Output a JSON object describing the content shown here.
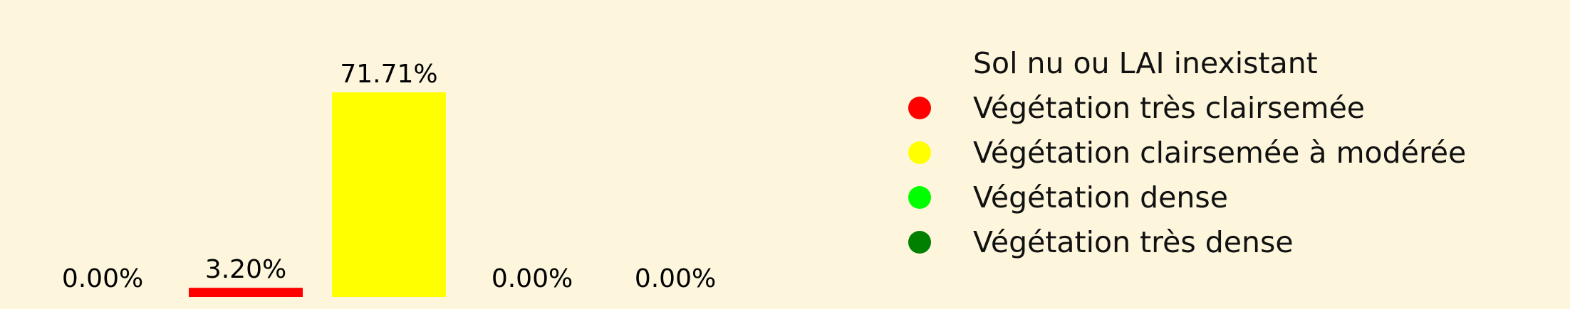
{
  "chart_data": {
    "type": "bar",
    "categories": [
      "Sol nu ou LAI inexistant",
      "Végétation très clairsemée",
      "Végétation clairsemée à modérée",
      "Végétation dense",
      "Végétation très dense"
    ],
    "values": [
      0.0,
      3.2,
      71.71,
      0.0,
      0.0
    ],
    "value_labels": [
      "0.00%",
      "3.20%",
      "71.71%",
      "0.00%",
      "0.00%"
    ],
    "colors": [
      "#fdf6dc",
      "#ff0000",
      "#ffff00",
      "#00ff00",
      "#008000"
    ],
    "ylim": [
      0,
      71.71
    ],
    "legend": {
      "placement": "right",
      "entries": [
        {
          "label": "Sol nu ou LAI inexistant",
          "color": "#fdf6dc"
        },
        {
          "label": "Végétation très clairsemée",
          "color": "#ff0000"
        },
        {
          "label": "Végétation clairsemée à modérée",
          "color": "#ffff00"
        },
        {
          "label": "Végétation dense",
          "color": "#00ff00"
        },
        {
          "label": "Végétation très dense",
          "color": "#008000"
        }
      ]
    },
    "axes_visible": false,
    "grid": false,
    "title": "",
    "xlabel": "",
    "ylabel": ""
  },
  "background_color": "#fdf6dc"
}
